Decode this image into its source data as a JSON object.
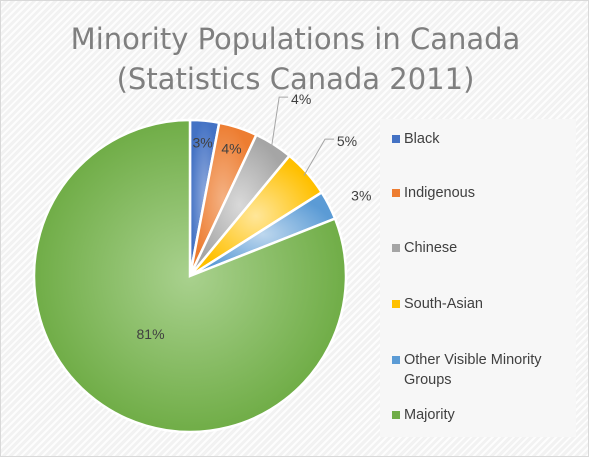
{
  "chart_data": {
    "type": "pie",
    "title": "Minority Populations in Canada",
    "subtitle": "(Statistics Canada 2011)",
    "slices": [
      {
        "name": "Black",
        "value": 3,
        "label": "3%",
        "color": "#4472C4"
      },
      {
        "name": "Indigenous",
        "value": 4,
        "label": "4%",
        "color": "#ED7D31"
      },
      {
        "name": "Chinese",
        "value": 4,
        "label": "4%",
        "color": "#A5A5A5"
      },
      {
        "name": "South-Asian",
        "value": 5,
        "label": "5%",
        "color": "#FFC000"
      },
      {
        "name": "Other Visible Minority Groups",
        "value": 3,
        "label": "3%",
        "color": "#5B9BD5"
      },
      {
        "name": "Majority",
        "value": 81,
        "label": "81%",
        "color": "#70AD47"
      }
    ],
    "legend_position": "right"
  }
}
